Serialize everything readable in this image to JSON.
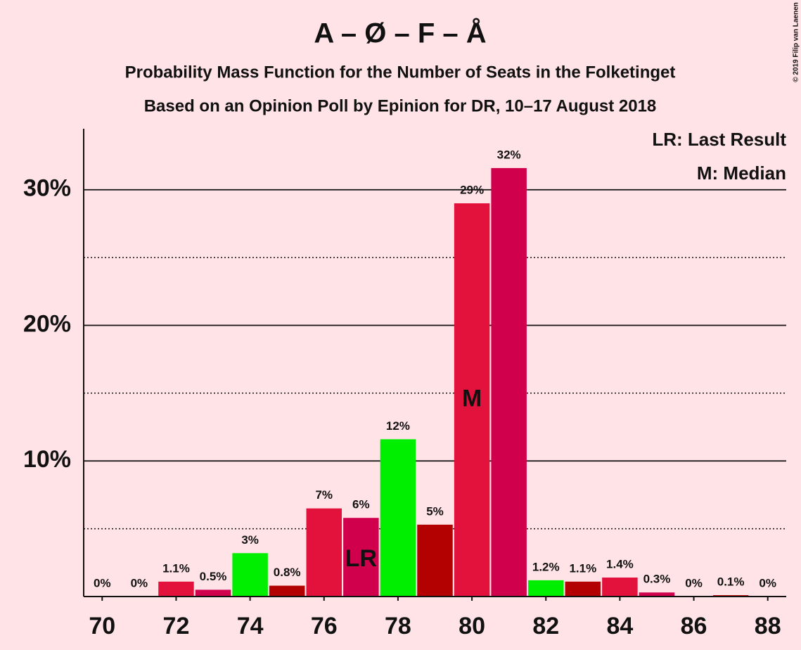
{
  "chart_data": {
    "type": "bar",
    "title": "A – Ø – F – Å",
    "subtitle": "Probability Mass Function for the Number of Seats in the Folketinget",
    "subtitle2": "Based on an Opinion Poll by Epinion for DR, 10–17 August 2018",
    "copyright": "© 2019 Filip van Laenen",
    "legend": [
      "LR: Last Result",
      "M: Median"
    ],
    "x": [
      70,
      71,
      72,
      73,
      74,
      75,
      76,
      77,
      78,
      79,
      80,
      81,
      82,
      83,
      84,
      85,
      86,
      87,
      88
    ],
    "values": [
      0,
      0,
      1.1,
      0.5,
      3.2,
      0.8,
      6.5,
      5.8,
      11.6,
      5.3,
      29.0,
      31.6,
      1.2,
      1.1,
      1.4,
      0.3,
      0,
      0.1,
      0
    ],
    "value_labels": [
      "0%",
      "0%",
      "1.1%",
      "0.5%",
      "3%",
      "0.8%",
      "7%",
      "6%",
      "12%",
      "5%",
      "29%",
      "32%",
      "1.2%",
      "1.1%",
      "1.4%",
      "0.3%",
      "0%",
      "0.1%",
      "0%"
    ],
    "colors": [
      "#00ee00",
      "#b30000",
      "#e3123d",
      "#d1004c",
      "#00ee00",
      "#b30000",
      "#e3123d",
      "#d1004c",
      "#00ee00",
      "#b30000",
      "#e3123d",
      "#d1004c",
      "#00ee00",
      "#b30000",
      "#e3123d",
      "#d1004c",
      "#00ee00",
      "#b30000",
      "#e3123d"
    ],
    "annotations": [
      {
        "x": 77,
        "text": "LR"
      },
      {
        "x": 80,
        "text": "M"
      }
    ],
    "xlim": [
      69.5,
      88.5
    ],
    "xticks": [
      70,
      72,
      74,
      76,
      78,
      80,
      82,
      84,
      86,
      88
    ],
    "ylim": [
      0,
      34.5
    ],
    "yticks": [
      {
        "value": 10,
        "label": "10%"
      },
      {
        "value": 20,
        "label": "20%"
      },
      {
        "value": 30,
        "label": "30%"
      }
    ],
    "minor_yticks": [
      5,
      15,
      25
    ],
    "grid": true
  }
}
